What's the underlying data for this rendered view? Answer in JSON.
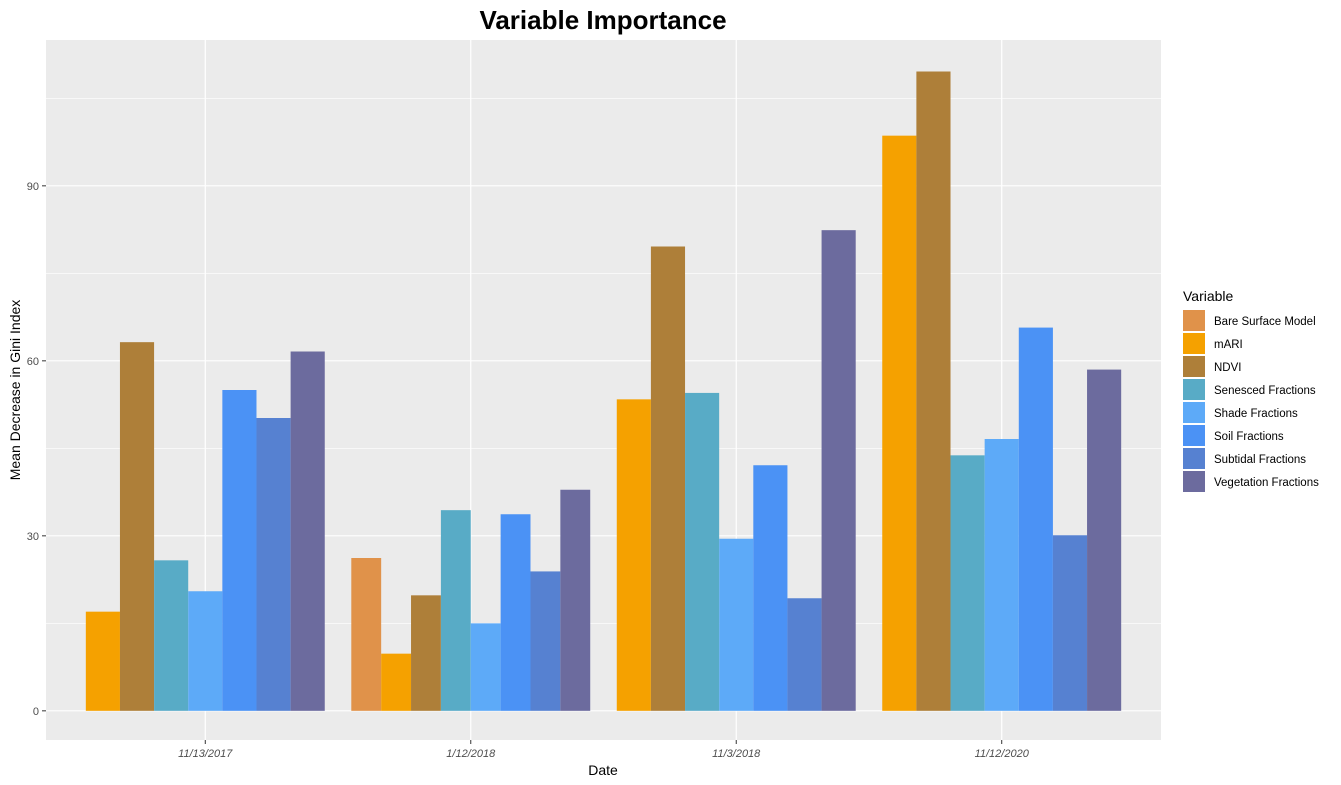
{
  "chart_data": {
    "type": "bar",
    "title": "Variable Importance",
    "xlabel": "Date",
    "ylabel": "Mean Decrease in Gini Index",
    "ylim": [
      -5,
      115
    ],
    "yticks": [
      0,
      30,
      60,
      90
    ],
    "grid": true,
    "legend_title": "Variable",
    "legend_position": "right",
    "categories": [
      "11/13/2017",
      "1/12/2018",
      "11/3/2018",
      "11/12/2020"
    ],
    "series": [
      {
        "name": "Bare Surface Model",
        "color": "#E0924A",
        "values": [
          null,
          26.2,
          null,
          null
        ]
      },
      {
        "name": "mARI",
        "color": "#F5A100",
        "values": [
          17.0,
          9.8,
          53.4,
          98.6
        ]
      },
      {
        "name": "NDVI",
        "color": "#AE7F39",
        "values": [
          63.2,
          19.8,
          79.6,
          109.6
        ]
      },
      {
        "name": "Senesced Fractions",
        "color": "#58ABC6",
        "values": [
          25.8,
          34.4,
          54.5,
          43.8
        ]
      },
      {
        "name": "Shade Fractions",
        "color": "#5DAAF8",
        "values": [
          20.5,
          15.0,
          29.5,
          46.6
        ]
      },
      {
        "name": "Soil Fractions",
        "color": "#4B92F5",
        "values": [
          55.0,
          33.7,
          42.1,
          65.7
        ]
      },
      {
        "name": "Subtidal Fractions",
        "color": "#5681D1",
        "values": [
          50.2,
          23.9,
          19.3,
          30.1
        ]
      },
      {
        "name": "Vegetation Fractions",
        "color": "#6C6B9E",
        "values": [
          61.6,
          37.9,
          82.4,
          58.5
        ]
      }
    ]
  }
}
